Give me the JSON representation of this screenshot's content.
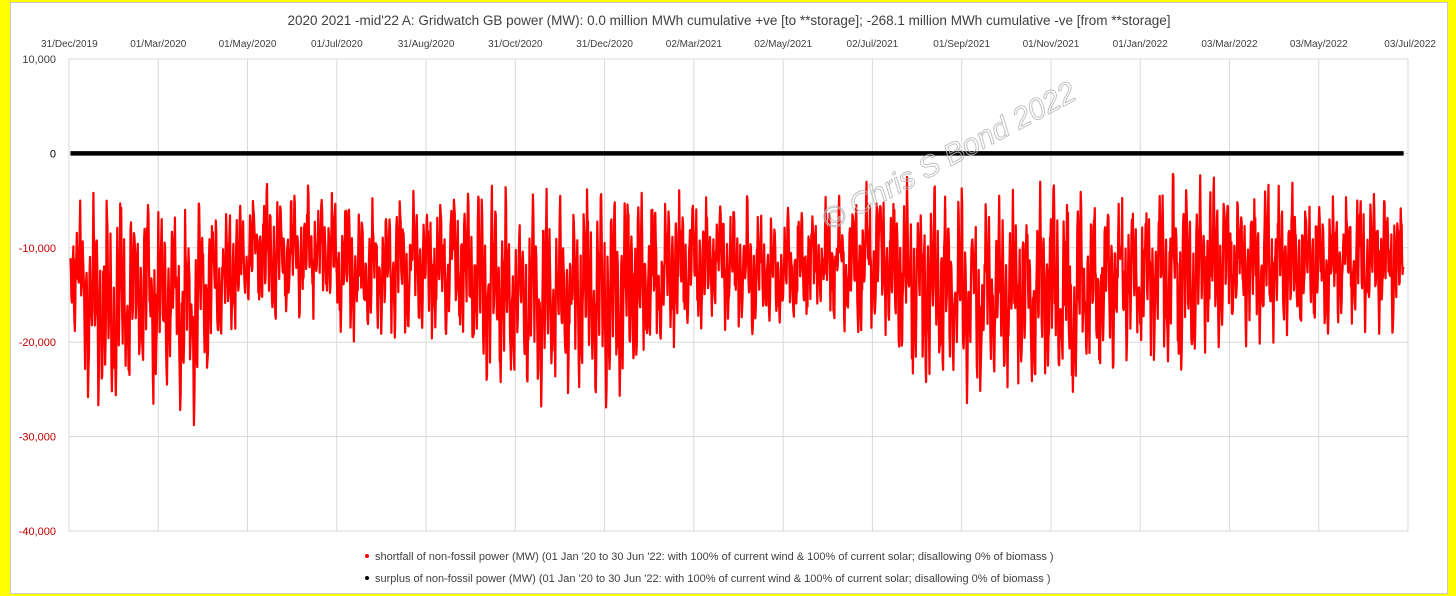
{
  "chart_data": {
    "type": "line",
    "title": "2020 2021 -mid'22 A:  Gridwatch GB power (MW): 0.0 million MWh cumulative +ve [to **storage]; -268.1 million MWh cumulative -ve [from **storage]",
    "x_tick_labels": [
      "31/Dec/2019",
      "01/Mar/2020",
      "01/May/2020",
      "01/Jul/2020",
      "31/Aug/2020",
      "31/Oct/2020",
      "31/Dec/2020",
      "02/Mar/2021",
      "02/May/2021",
      "02/Jul/2021",
      "01/Sep/2021",
      "01/Nov/2021",
      "01/Jan/2022",
      "03/Mar/2022",
      "03/May/2022",
      "03/Jul/2022"
    ],
    "x_axis_position": "top",
    "xlim": [
      "31/Dec/2019",
      "03/Jul/2022"
    ],
    "ylim": [
      -40000,
      10000
    ],
    "y_ticks": [
      10000,
      0,
      -10000,
      -20000,
      -30000,
      -40000
    ],
    "y_tick_labels": [
      "10,000",
      "0",
      "-10,000",
      "-20,000",
      "-30,000",
      "-40,000"
    ],
    "y_label_colors": {
      "positive": "#404040",
      "zero": "#000000",
      "negative": "#c00000"
    },
    "grid": {
      "vertical": true,
      "horizontal": true
    },
    "series": [
      {
        "name": "shortfall of non-fossil power (MW) (01 Jan '20 to 30 Jun '22:  with 100% of current wind & 100% of current solar;  disallowing 0% of biomass )",
        "color": "#ff0000",
        "marker": "dot",
        "note": "dense daily oscillating trace; envelope of visible minima/maxima approx. every 2 weeks",
        "date_start": "01/Jan/2020",
        "date_end": "30/Jun/2022",
        "upper_envelope": [
          -4000,
          -4500,
          -3500,
          -4000,
          -3500,
          -3500,
          -3800,
          -4200,
          -4000,
          -3500,
          -4000,
          -3000,
          -2800,
          -3500,
          -3000,
          -3500,
          -3200,
          -3600,
          -4000,
          -3800,
          -4000,
          -4500,
          -3500,
          -3200,
          -3000,
          -3500,
          -4000,
          -4500,
          -3000,
          -2800,
          -2500,
          -3000,
          -3500,
          -4000,
          -3500,
          -3800,
          -4500,
          -4000,
          -5000,
          -4500,
          -5000,
          -6000,
          -5500,
          -5000,
          -4000,
          -3500,
          -3000,
          -2500,
          -2200,
          -3000,
          -2500,
          -2800,
          -3200,
          -4000,
          -4500,
          -3000,
          -3000,
          -2500,
          -3500,
          -3000,
          -2500,
          -3000,
          -3500,
          -2500,
          -2000,
          -2500,
          -1800,
          -2000,
          -3000,
          -2500,
          -3000,
          -3000,
          -3500,
          -4000,
          -3000,
          -3500,
          -3000,
          -3500
        ],
        "lower_envelope": [
          -17000,
          -26000,
          -30500,
          -27000,
          -25000,
          -27500,
          -26000,
          -29500,
          -24000,
          -22000,
          -19000,
          -18000,
          -19000,
          -17500,
          -18000,
          -17000,
          -21000,
          -20000,
          -21000,
          -19000,
          -20000,
          -21000,
          -20000,
          -22000,
          -25000,
          -26500,
          -25000,
          -27000,
          -26000,
          -28000,
          -26500,
          -27500,
          -25000,
          -24000,
          -22000,
          -21000,
          -19000,
          -18000,
          -19000,
          -19500,
          -20000,
          -19000,
          -18500,
          -18000,
          -19000,
          -20000,
          -19500,
          -20000,
          -23000,
          -25500,
          -26500,
          -25000,
          -27000,
          -26500,
          -25000,
          -26000,
          -27000,
          -26000,
          -27500,
          -25000,
          -24500,
          -23000,
          -22000,
          -23000,
          -24000,
          -22000,
          -21000,
          -20000,
          -20500,
          -20000,
          -20500,
          -20000,
          -19000,
          -19500,
          -18500,
          -19500,
          -19000,
          -19000
        ]
      },
      {
        "name": "surplus of non-fossil power (MW) (01 Jan '20 to 30 Jun '22:  with 100% of current wind & 100% of current solar;  disallowing 0% of biomass )",
        "color": "#000000",
        "marker": "dot",
        "date_start": "01/Jan/2020",
        "date_end": "30/Jun/2022",
        "values": [
          0,
          0
        ]
      }
    ],
    "legend": {
      "position": "bottom-center"
    },
    "watermark": "© Chris S Bond  2022"
  }
}
